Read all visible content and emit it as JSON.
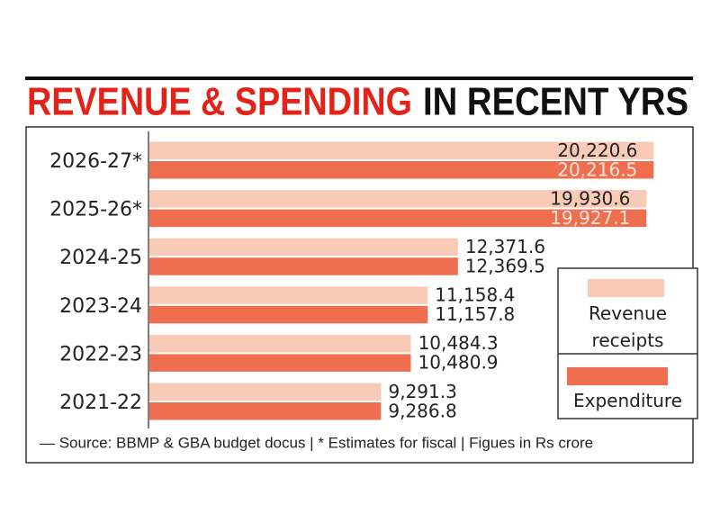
{
  "chart_data": {
    "type": "bar",
    "orientation": "horizontal",
    "title_parts": [
      "REVENUE & SPENDING",
      "IN RECENT YRS"
    ],
    "categories": [
      "2026-27*",
      "2025-26*",
      "2024-25",
      "2023-24",
      "2022-23",
      "2021-22"
    ],
    "series": [
      {
        "name": "Revenue receipts",
        "color": "#f9cab6",
        "values": [
          20220.6,
          19930.6,
          12371.6,
          11158.4,
          10484.3,
          9291.3
        ],
        "value_labels": [
          "20,220.6",
          "19,930.6",
          "12,371.6",
          "11,158.4",
          "10,484.3",
          "9,291.3"
        ]
      },
      {
        "name": "Expenditure",
        "color": "#ee6e4f",
        "values": [
          20216.5,
          19927.1,
          12369.5,
          11157.8,
          10480.9,
          9286.8
        ],
        "value_labels": [
          "20,216.5",
          "19,927.1",
          "12,369.5",
          "11,157.8",
          "10,480.9",
          "9,286.8"
        ]
      }
    ],
    "xlim": [
      0,
      21000
    ],
    "footnote": "— Source: BBMP & GBA budget docus | * Estimates for fiscal | Figues in Rs crore"
  }
}
